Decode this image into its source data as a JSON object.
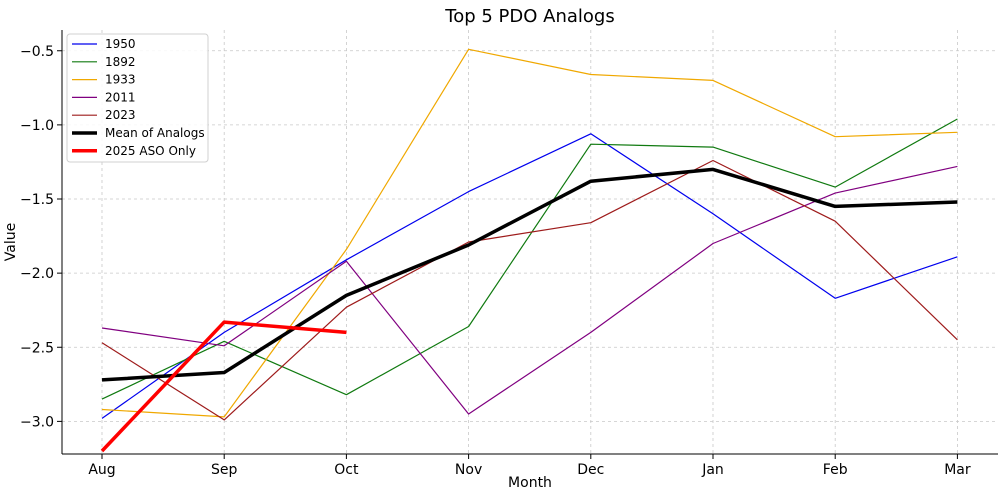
{
  "chart_data": {
    "type": "line",
    "title": "Top 5 PDO Analogs",
    "xlabel": "Month",
    "ylabel": "Value",
    "categories": [
      "Aug",
      "Sep",
      "Oct",
      "Nov",
      "Dec",
      "Jan",
      "Feb",
      "Mar"
    ],
    "yticks": [
      -3.0,
      -2.5,
      -2.0,
      -1.5,
      -1.0,
      -0.5
    ],
    "ytick_labels": [
      "−3.0",
      "−2.5",
      "−2.0",
      "−1.5",
      "−1.0",
      "−0.5"
    ],
    "ylim": [
      -3.22,
      -0.36
    ],
    "grid": true,
    "legend_position": "top-left",
    "series": [
      {
        "name": "1950",
        "color": "#0000ee",
        "width": 1.2,
        "values": [
          -2.98,
          -2.4,
          -1.91,
          -1.45,
          -1.06,
          -1.6,
          -2.17,
          -1.89
        ]
      },
      {
        "name": "1892",
        "color": "#107a10",
        "width": 1.2,
        "values": [
          -2.85,
          -2.46,
          -2.82,
          -2.36,
          -1.13,
          -1.15,
          -1.42,
          -0.96
        ]
      },
      {
        "name": "1933",
        "color": "#f0a800",
        "width": 1.2,
        "values": [
          -2.92,
          -2.97,
          -1.84,
          -0.49,
          -0.66,
          -0.7,
          -1.08,
          -1.05
        ]
      },
      {
        "name": "2011",
        "color": "#800080",
        "width": 1.2,
        "values": [
          -2.37,
          -2.49,
          -1.92,
          -2.95,
          -2.4,
          -1.8,
          -1.46,
          -1.28
        ]
      },
      {
        "name": "2023",
        "color": "#9e1b1b",
        "width": 1.2,
        "values": [
          -2.47,
          -2.99,
          -2.23,
          -1.79,
          -1.66,
          -1.24,
          -1.65,
          -2.45
        ]
      },
      {
        "name": "Mean of Analogs",
        "color": "#000000",
        "width": 3.5,
        "values": [
          -2.72,
          -2.67,
          -2.15,
          -1.81,
          -1.38,
          -1.3,
          -1.55,
          -1.52
        ]
      },
      {
        "name": "2025 ASO Only",
        "color": "#ff0000",
        "width": 3.5,
        "values": [
          -3.2,
          -2.33,
          -2.4,
          null,
          null,
          null,
          null,
          null
        ]
      }
    ]
  }
}
